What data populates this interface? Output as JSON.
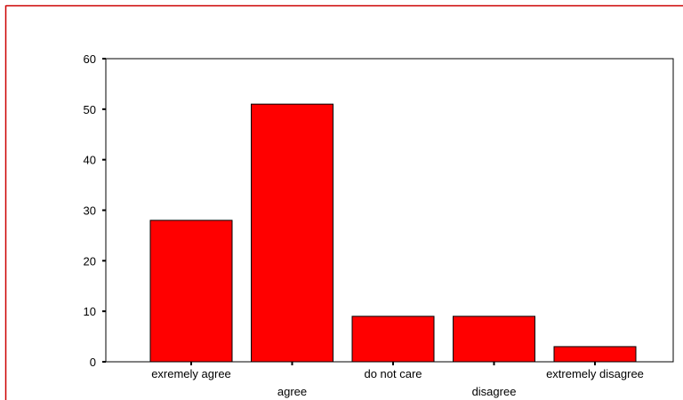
{
  "chart_data": {
    "type": "bar",
    "categories": [
      "exremely agree",
      "agree",
      "do not care",
      "disagree",
      "extremely disagree"
    ],
    "values": [
      28,
      51,
      9,
      9,
      3
    ],
    "title": "",
    "xlabel": "",
    "ylabel": "",
    "ylim": [
      0,
      60
    ],
    "yticks": [
      0,
      10,
      20,
      30,
      40,
      50,
      60
    ],
    "grid": false,
    "legend": "none",
    "colors": {
      "bar_fill": "#ff0000",
      "bar_stroke": "#000000",
      "frame": "#cc0000",
      "axis": "#000000",
      "background": "#ffffff"
    }
  }
}
